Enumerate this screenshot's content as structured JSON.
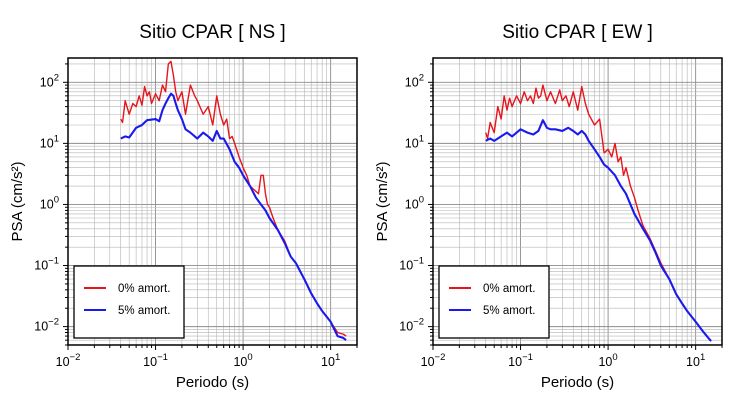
{
  "chart_data": [
    {
      "type": "line",
      "title": "Sitio CPAR [ NS ]",
      "xlabel": "Periodo (s)",
      "ylabel": "PSA (cm/s²)",
      "xscale": "log",
      "yscale": "log",
      "xlim": [
        0.01,
        20
      ],
      "ylim": [
        0.005,
        250
      ],
      "x_ticks": [
        {
          "value": 0.01,
          "base": "10",
          "exp": "−2"
        },
        {
          "value": 0.1,
          "base": "10",
          "exp": "−1"
        },
        {
          "value": 1,
          "base": "10",
          "exp": "0"
        },
        {
          "value": 10,
          "base": "10",
          "exp": "1"
        }
      ],
      "y_ticks": [
        {
          "value": 0.01,
          "base": "10",
          "exp": "−2"
        },
        {
          "value": 0.1,
          "base": "10",
          "exp": "−1"
        },
        {
          "value": 1,
          "base": "10",
          "exp": "0"
        },
        {
          "value": 10,
          "base": "10",
          "exp": "1"
        },
        {
          "value": 100,
          "base": "10",
          "exp": "2"
        }
      ],
      "grid": true,
      "legend_position": "bottom-left",
      "series": [
        {
          "name": "0% amort.",
          "color": "#e8141c",
          "points": [
            [
              0.04,
              25
            ],
            [
              0.042,
              22
            ],
            [
              0.045,
              50
            ],
            [
              0.05,
              30
            ],
            [
              0.055,
              45
            ],
            [
              0.06,
              40
            ],
            [
              0.065,
              60
            ],
            [
              0.07,
              42
            ],
            [
              0.075,
              85
            ],
            [
              0.08,
              60
            ],
            [
              0.085,
              70
            ],
            [
              0.09,
              45
            ],
            [
              0.1,
              65
            ],
            [
              0.11,
              50
            ],
            [
              0.12,
              90
            ],
            [
              0.13,
              70
            ],
            [
              0.14,
              200
            ],
            [
              0.15,
              220
            ],
            [
              0.16,
              130
            ],
            [
              0.17,
              70
            ],
            [
              0.18,
              50
            ],
            [
              0.2,
              70
            ],
            [
              0.22,
              30
            ],
            [
              0.25,
              90
            ],
            [
              0.28,
              60
            ],
            [
              0.3,
              50
            ],
            [
              0.35,
              30
            ],
            [
              0.4,
              40
            ],
            [
              0.45,
              20
            ],
            [
              0.5,
              60
            ],
            [
              0.55,
              30
            ],
            [
              0.6,
              20
            ],
            [
              0.65,
              25
            ],
            [
              0.7,
              12
            ],
            [
              0.75,
              13
            ],
            [
              0.8,
              10
            ],
            [
              0.9,
              6
            ],
            [
              1.0,
              4
            ],
            [
              1.1,
              3
            ],
            [
              1.2,
              2
            ],
            [
              1.3,
              1.8
            ],
            [
              1.5,
              1.5
            ],
            [
              1.6,
              3
            ],
            [
              1.7,
              3
            ],
            [
              1.8,
              1.5
            ],
            [
              1.9,
              1.0
            ],
            [
              2.0,
              0.9
            ],
            [
              2.2,
              0.6
            ],
            [
              2.5,
              0.38
            ],
            [
              3,
              0.25
            ],
            [
              3.5,
              0.14
            ],
            [
              4,
              0.11
            ],
            [
              5,
              0.06
            ],
            [
              6,
              0.035
            ],
            [
              7,
              0.024
            ],
            [
              8,
              0.018
            ],
            [
              10,
              0.012
            ],
            [
              12,
              0.008
            ],
            [
              14,
              0.0075
            ],
            [
              15,
              0.007
            ]
          ]
        },
        {
          "name": "5% amort.",
          "color": "#1a1aee",
          "points": [
            [
              0.04,
              12
            ],
            [
              0.045,
              13
            ],
            [
              0.05,
              12.5
            ],
            [
              0.06,
              18
            ],
            [
              0.07,
              20
            ],
            [
              0.08,
              24
            ],
            [
              0.1,
              25
            ],
            [
              0.11,
              23
            ],
            [
              0.12,
              35
            ],
            [
              0.13,
              45
            ],
            [
              0.14,
              55
            ],
            [
              0.15,
              65
            ],
            [
              0.16,
              60
            ],
            [
              0.17,
              45
            ],
            [
              0.18,
              35
            ],
            [
              0.2,
              25
            ],
            [
              0.22,
              17
            ],
            [
              0.25,
              15
            ],
            [
              0.3,
              12
            ],
            [
              0.35,
              15
            ],
            [
              0.4,
              13
            ],
            [
              0.45,
              11
            ],
            [
              0.5,
              16
            ],
            [
              0.55,
              12
            ],
            [
              0.6,
              12
            ],
            [
              0.7,
              8
            ],
            [
              0.8,
              5
            ],
            [
              0.9,
              4
            ],
            [
              1.0,
              3
            ],
            [
              1.2,
              2
            ],
            [
              1.4,
              1.3
            ],
            [
              1.6,
              1.0
            ],
            [
              1.8,
              0.8
            ],
            [
              2.0,
              0.6
            ],
            [
              2.5,
              0.38
            ],
            [
              3,
              0.23
            ],
            [
              3.5,
              0.14
            ],
            [
              4,
              0.11
            ],
            [
              5,
              0.06
            ],
            [
              6,
              0.035
            ],
            [
              7,
              0.024
            ],
            [
              8,
              0.018
            ],
            [
              10,
              0.012
            ],
            [
              12,
              0.007
            ],
            [
              14,
              0.0065
            ],
            [
              15,
              0.006
            ]
          ]
        }
      ]
    },
    {
      "type": "line",
      "title": "Sitio CPAR [ EW ]",
      "xlabel": "Periodo (s)",
      "ylabel": "PSA (cm/s²)",
      "xscale": "log",
      "yscale": "log",
      "xlim": [
        0.01,
        20
      ],
      "ylim": [
        0.005,
        250
      ],
      "x_ticks": [
        {
          "value": 0.01,
          "base": "10",
          "exp": "−2"
        },
        {
          "value": 0.1,
          "base": "10",
          "exp": "−1"
        },
        {
          "value": 1,
          "base": "10",
          "exp": "0"
        },
        {
          "value": 10,
          "base": "10",
          "exp": "1"
        }
      ],
      "y_ticks": [
        {
          "value": 0.01,
          "base": "10",
          "exp": "−2"
        },
        {
          "value": 0.1,
          "base": "10",
          "exp": "−1"
        },
        {
          "value": 1,
          "base": "10",
          "exp": "0"
        },
        {
          "value": 10,
          "base": "10",
          "exp": "1"
        },
        {
          "value": 100,
          "base": "10",
          "exp": "2"
        }
      ],
      "grid": true,
      "legend_position": "bottom-left",
      "series": [
        {
          "name": "0% amort.",
          "color": "#e8141c",
          "points": [
            [
              0.04,
              15
            ],
            [
              0.042,
              12
            ],
            [
              0.045,
              22
            ],
            [
              0.05,
              15
            ],
            [
              0.055,
              40
            ],
            [
              0.06,
              25
            ],
            [
              0.065,
              60
            ],
            [
              0.07,
              35
            ],
            [
              0.075,
              55
            ],
            [
              0.08,
              40
            ],
            [
              0.09,
              60
            ],
            [
              0.1,
              45
            ],
            [
              0.11,
              70
            ],
            [
              0.12,
              50
            ],
            [
              0.13,
              60
            ],
            [
              0.14,
              45
            ],
            [
              0.15,
              80
            ],
            [
              0.16,
              55
            ],
            [
              0.17,
              60
            ],
            [
              0.18,
              90
            ],
            [
              0.2,
              50
            ],
            [
              0.22,
              70
            ],
            [
              0.25,
              45
            ],
            [
              0.28,
              75
            ],
            [
              0.3,
              50
            ],
            [
              0.33,
              60
            ],
            [
              0.36,
              40
            ],
            [
              0.4,
              70
            ],
            [
              0.45,
              35
            ],
            [
              0.5,
              85
            ],
            [
              0.55,
              45
            ],
            [
              0.6,
              30
            ],
            [
              0.7,
              20
            ],
            [
              0.8,
              25
            ],
            [
              0.9,
              7
            ],
            [
              1.0,
              8
            ],
            [
              1.1,
              6
            ],
            [
              1.2,
              10
            ],
            [
              1.3,
              5
            ],
            [
              1.4,
              6
            ],
            [
              1.5,
              3
            ],
            [
              1.6,
              4
            ],
            [
              1.8,
              2
            ],
            [
              2.0,
              1.3
            ],
            [
              2.2,
              0.8
            ],
            [
              2.5,
              0.45
            ],
            [
              3,
              0.28
            ],
            [
              3.5,
              0.17
            ],
            [
              4,
              0.11
            ],
            [
              5,
              0.06
            ],
            [
              6,
              0.034
            ],
            [
              7,
              0.024
            ],
            [
              8,
              0.018
            ],
            [
              10,
              0.012
            ],
            [
              12,
              0.0085
            ],
            [
              14,
              0.0065
            ],
            [
              15,
              0.0058
            ]
          ]
        },
        {
          "name": "5% amort.",
          "color": "#1a1aee",
          "points": [
            [
              0.04,
              11
            ],
            [
              0.045,
              12
            ],
            [
              0.05,
              11
            ],
            [
              0.06,
              13
            ],
            [
              0.07,
              15
            ],
            [
              0.08,
              13
            ],
            [
              0.1,
              17
            ],
            [
              0.12,
              15
            ],
            [
              0.14,
              14
            ],
            [
              0.16,
              16
            ],
            [
              0.18,
              24
            ],
            [
              0.2,
              18
            ],
            [
              0.22,
              17
            ],
            [
              0.25,
              17
            ],
            [
              0.3,
              16
            ],
            [
              0.35,
              18
            ],
            [
              0.4,
              16
            ],
            [
              0.45,
              14
            ],
            [
              0.5,
              16
            ],
            [
              0.55,
              14
            ],
            [
              0.6,
              11
            ],
            [
              0.7,
              8
            ],
            [
              0.8,
              6
            ],
            [
              0.9,
              4.5
            ],
            [
              1.0,
              4
            ],
            [
              1.2,
              3
            ],
            [
              1.4,
              2
            ],
            [
              1.6,
              1.5
            ],
            [
              1.8,
              1.0
            ],
            [
              2.0,
              0.7
            ],
            [
              2.5,
              0.4
            ],
            [
              3,
              0.26
            ],
            [
              3.5,
              0.16
            ],
            [
              4,
              0.1
            ],
            [
              5,
              0.06
            ],
            [
              6,
              0.034
            ],
            [
              7,
              0.024
            ],
            [
              8,
              0.018
            ],
            [
              10,
              0.012
            ],
            [
              12,
              0.0085
            ],
            [
              14,
              0.0065
            ],
            [
              15,
              0.0058
            ]
          ]
        }
      ]
    }
  ]
}
